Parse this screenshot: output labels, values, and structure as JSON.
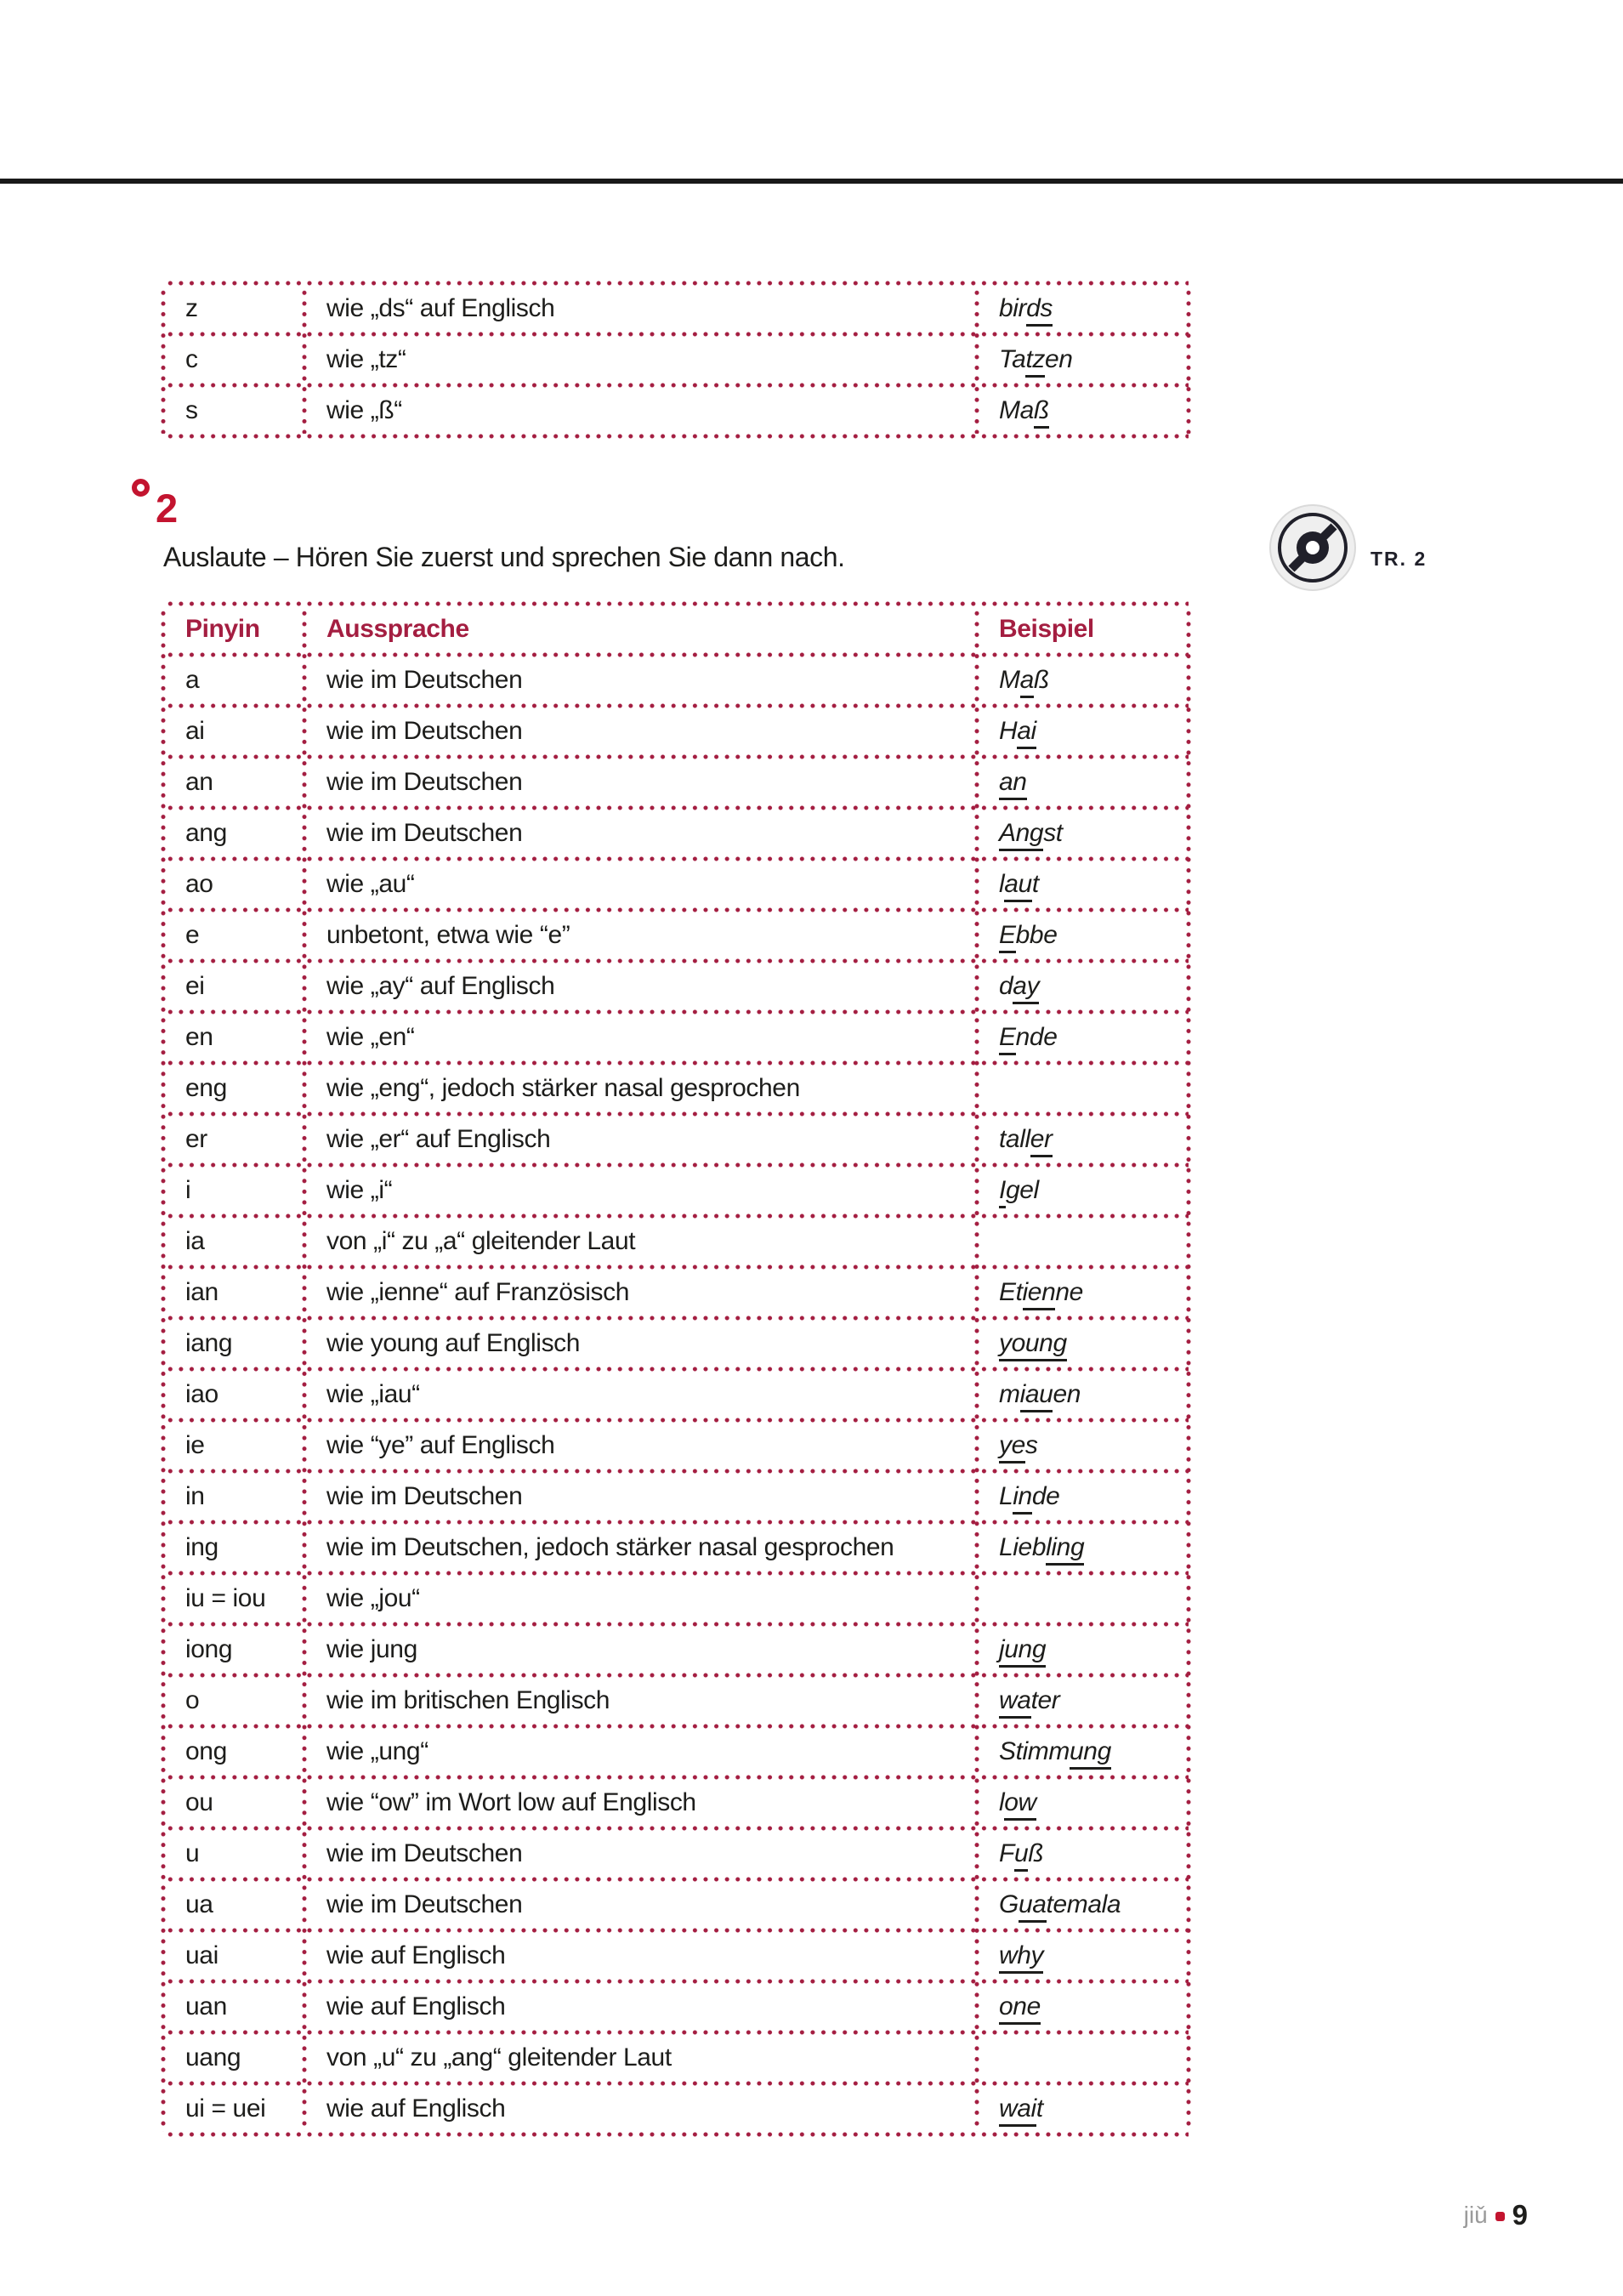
{
  "colors": {
    "accent": "#a41e41",
    "bright_red": "#c3142f",
    "text": "#1d1d1b",
    "rule": "#191919",
    "muted_gray": "#9a9a9a"
  },
  "continuation_table": {
    "rows": [
      {
        "pinyin": "z",
        "aussprache": "wie „ds“ auf Englisch",
        "beispiel": [
          "bir",
          "ds",
          ""
        ]
      },
      {
        "pinyin": "c",
        "aussprache": "wie „tz“",
        "beispiel": [
          "Ta",
          "tz",
          "en"
        ]
      },
      {
        "pinyin": "s",
        "aussprache": "wie „ß“",
        "beispiel": [
          "Ma",
          "ß",
          ""
        ]
      }
    ]
  },
  "exercise": {
    "number": "2",
    "instruction": "Auslaute – Hören Sie zuerst und sprechen Sie dann nach.",
    "track_label": "TR. 2",
    "cd_icon": "cd-icon"
  },
  "finals_table": {
    "headers": [
      "Pinyin",
      "Aussprache",
      "Beispiel"
    ],
    "rows": [
      {
        "pinyin": "a",
        "aussprache": "wie im Deutschen",
        "beispiel": [
          "M",
          "a",
          "ß"
        ]
      },
      {
        "pinyin": "ai",
        "aussprache": "wie im Deutschen",
        "beispiel": [
          "H",
          "ai",
          ""
        ]
      },
      {
        "pinyin": "an",
        "aussprache": "wie im Deutschen",
        "beispiel": [
          "",
          "an",
          ""
        ]
      },
      {
        "pinyin": "ang",
        "aussprache": "wie im Deutschen",
        "beispiel": [
          "",
          "Ang",
          "st"
        ]
      },
      {
        "pinyin": "ao",
        "aussprache": "wie „au“",
        "beispiel": [
          "l",
          "au",
          "t"
        ]
      },
      {
        "pinyin": "e",
        "aussprache": "unbetont, etwa wie “e”",
        "beispiel": [
          "",
          "E",
          "bbe"
        ]
      },
      {
        "pinyin": "ei",
        "aussprache": "wie „ay“ auf Englisch",
        "beispiel": [
          "d",
          "ay",
          ""
        ]
      },
      {
        "pinyin": "en",
        "aussprache": "wie „en“",
        "beispiel": [
          "",
          "E",
          "nde"
        ]
      },
      {
        "pinyin": "eng",
        "aussprache": "wie „eng“, jedoch stärker nasal gesprochen",
        "beispiel": [
          "",
          "",
          ""
        ]
      },
      {
        "pinyin": "er",
        "aussprache": "wie „er“ auf Englisch",
        "beispiel": [
          "tall",
          "er",
          ""
        ]
      },
      {
        "pinyin": "i",
        "aussprache": "wie „i“",
        "beispiel": [
          "",
          "I",
          "gel"
        ]
      },
      {
        "pinyin": "ia",
        "aussprache": "von „i“ zu „a“ gleitender Laut",
        "beispiel": [
          "",
          "",
          ""
        ]
      },
      {
        "pinyin": "ian",
        "aussprache": "wie „ienne“ auf Französisch",
        "beispiel": [
          "Et",
          "ien",
          "ne"
        ]
      },
      {
        "pinyin": "iang",
        "aussprache": "wie young auf Englisch",
        "beispiel": [
          "",
          "young",
          ""
        ]
      },
      {
        "pinyin": "iao",
        "aussprache": "wie „iau“",
        "beispiel": [
          "m",
          "iau",
          "en"
        ]
      },
      {
        "pinyin": "ie",
        "aussprache": "wie “ye” auf Englisch",
        "beispiel": [
          "",
          "ye",
          "s"
        ]
      },
      {
        "pinyin": "in",
        "aussprache": "wie im Deutschen",
        "beispiel": [
          "L",
          "in",
          "de"
        ]
      },
      {
        "pinyin": "ing",
        "aussprache": "wie im Deutschen, jedoch stärker nasal gesprochen",
        "beispiel": [
          "Lieb",
          "ling",
          ""
        ]
      },
      {
        "pinyin": "iu = iou",
        "aussprache": "wie „jou“",
        "beispiel": [
          "",
          "",
          ""
        ]
      },
      {
        "pinyin": "iong",
        "aussprache": "wie jung",
        "beispiel": [
          "",
          "jung",
          ""
        ]
      },
      {
        "pinyin": "o",
        "aussprache": "wie im britischen Englisch",
        "beispiel": [
          "",
          "wa",
          "ter"
        ]
      },
      {
        "pinyin": "ong",
        "aussprache": "wie „ung“",
        "beispiel": [
          "Stimm",
          "ung",
          ""
        ]
      },
      {
        "pinyin": "ou",
        "aussprache": "wie “ow” im Wort low auf Englisch",
        "beispiel": [
          "l",
          "ow",
          ""
        ]
      },
      {
        "pinyin": "u",
        "aussprache": "wie im Deutschen",
        "beispiel": [
          "F",
          "u",
          "ß"
        ]
      },
      {
        "pinyin": "ua",
        "aussprache": "wie im Deutschen",
        "beispiel": [
          "G",
          "ua",
          "temala"
        ]
      },
      {
        "pinyin": "uai",
        "aussprache": "wie auf Englisch",
        "beispiel": [
          "",
          "why",
          ""
        ]
      },
      {
        "pinyin": "uan",
        "aussprache": "wie auf Englisch",
        "beispiel": [
          "",
          "one",
          ""
        ]
      },
      {
        "pinyin": "uang",
        "aussprache": "von „u“ zu „ang“ gleitender Laut",
        "beispiel": [
          "",
          "",
          ""
        ]
      },
      {
        "pinyin": "ui = uei",
        "aussprache": "wie auf Englisch",
        "beispiel": [
          "",
          "wai",
          "t"
        ]
      }
    ]
  },
  "footer": {
    "pinyin": "jiǔ",
    "page_number": "9"
  }
}
